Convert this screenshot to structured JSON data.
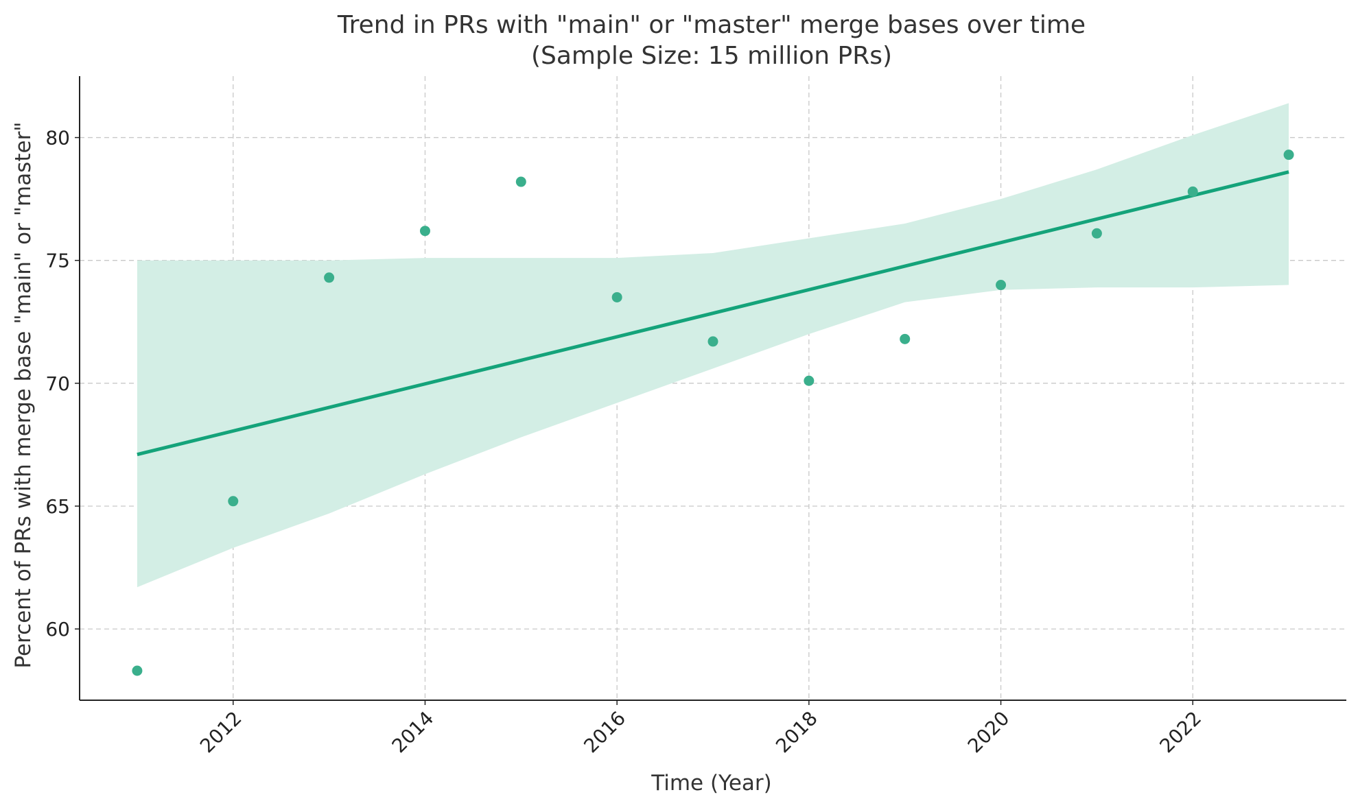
{
  "chart_data": {
    "type": "scatter",
    "title": "Trend in PRs with \"main\" or \"master\" merge bases over time",
    "subtitle": "(Sample Size: 15 million PRs)",
    "xlabel": "Time (Year)",
    "ylabel": "Percent of PRs with merge base \"main\" or \"master\"",
    "xlim": [
      2010.4,
      2023.6
    ],
    "ylim": [
      57.1,
      82.5
    ],
    "x_ticks": [
      2012,
      2014,
      2016,
      2018,
      2020,
      2022
    ],
    "y_ticks": [
      60,
      65,
      70,
      75,
      80
    ],
    "grid": true,
    "colors": {
      "points": "#3aaf8c",
      "trend_line": "#14a37a",
      "confidence_band": "#d3eee5"
    },
    "points": [
      {
        "x": 2011,
        "y": 58.3
      },
      {
        "x": 2012,
        "y": 65.2
      },
      {
        "x": 2013,
        "y": 74.3
      },
      {
        "x": 2014,
        "y": 76.2
      },
      {
        "x": 2015,
        "y": 78.2
      },
      {
        "x": 2016,
        "y": 73.5
      },
      {
        "x": 2017,
        "y": 71.7
      },
      {
        "x": 2018,
        "y": 70.1
      },
      {
        "x": 2019,
        "y": 71.8
      },
      {
        "x": 2020,
        "y": 74.0
      },
      {
        "x": 2021,
        "y": 76.1
      },
      {
        "x": 2022,
        "y": 77.8
      },
      {
        "x": 2023,
        "y": 79.3
      }
    ],
    "trend_line": {
      "start": {
        "x": 2011,
        "y": 67.1
      },
      "end": {
        "x": 2023,
        "y": 78.6
      }
    },
    "confidence_band": {
      "x": [
        2011,
        2012,
        2013,
        2014,
        2015,
        2016,
        2017,
        2018,
        2019,
        2020,
        2021,
        2022,
        2023
      ],
      "upper": [
        75.0,
        75.0,
        75.0,
        75.1,
        75.1,
        75.1,
        75.3,
        75.9,
        76.5,
        77.5,
        78.7,
        80.1,
        81.4
      ],
      "lower": [
        61.7,
        63.3,
        64.7,
        66.3,
        67.8,
        69.2,
        70.6,
        72.0,
        73.3,
        73.8,
        73.9,
        73.9,
        74.0
      ]
    }
  }
}
